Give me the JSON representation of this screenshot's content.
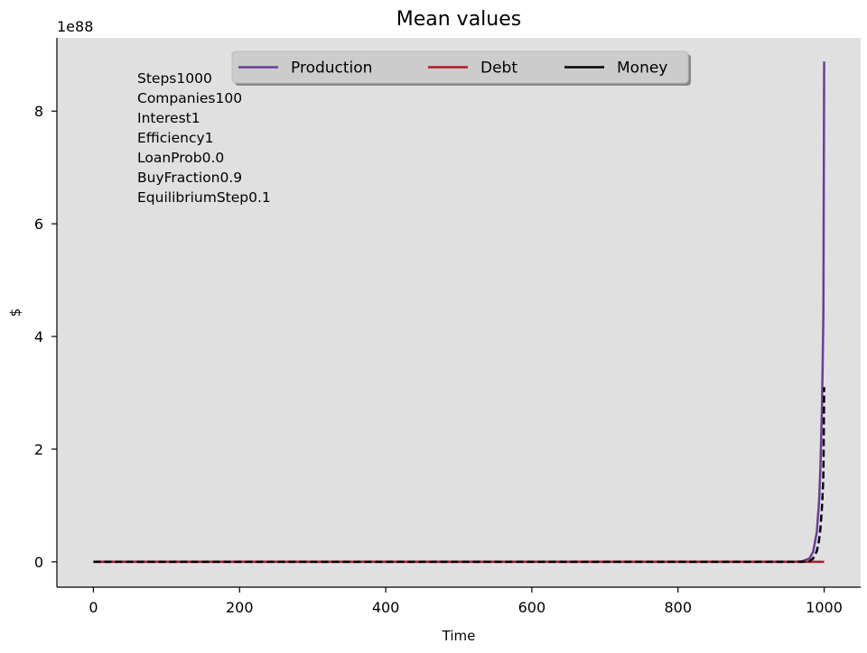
{
  "chart_data": {
    "type": "line",
    "title": "Mean values",
    "xlabel": "Time",
    "ylabel": "$",
    "y_offset_label": "1e88",
    "xlim": [
      -50,
      1050
    ],
    "ylim": [
      -0.45,
      9.3
    ],
    "x_ticks": [
      0,
      200,
      400,
      600,
      800,
      1000
    ],
    "y_ticks": [
      0,
      2,
      4,
      6,
      8
    ],
    "grid": false,
    "background": "#e0e0e0",
    "legend": {
      "placement": "top-center",
      "columns": 3,
      "entries": [
        "Production",
        "Debt",
        "Money"
      ]
    },
    "annotations": [
      "Steps1000",
      "Companies100",
      "Interest1",
      "Efficiency1",
      "LoanProb0.0",
      "BuyFraction0.9",
      "EquilibriumStep0.1"
    ],
    "series": [
      {
        "name": "Production",
        "color": "#6a3d9a",
        "dash": "solid",
        "x": [
          0,
          500,
          960,
          970,
          980,
          985,
          990,
          993,
          995,
          997,
          998,
          999,
          1000
        ],
        "values": [
          0,
          0,
          0,
          0.01,
          0.06,
          0.18,
          0.53,
          1.06,
          1.7,
          2.75,
          3.5,
          4.45,
          8.88
        ]
      },
      {
        "name": "Debt",
        "color": "#b2182b",
        "dash": "solid",
        "x": [
          0,
          1000
        ],
        "values": [
          0,
          0
        ]
      },
      {
        "name": "Money",
        "color": "#000000",
        "legend_dash": "solid",
        "dash": "dashed",
        "x": [
          0,
          500,
          970,
          980,
          985,
          990,
          993,
          995,
          997,
          998,
          999,
          1000
        ],
        "values": [
          0,
          0,
          0,
          0.01,
          0.06,
          0.19,
          0.38,
          0.6,
          0.97,
          1.23,
          1.56,
          3.1
        ]
      }
    ]
  }
}
